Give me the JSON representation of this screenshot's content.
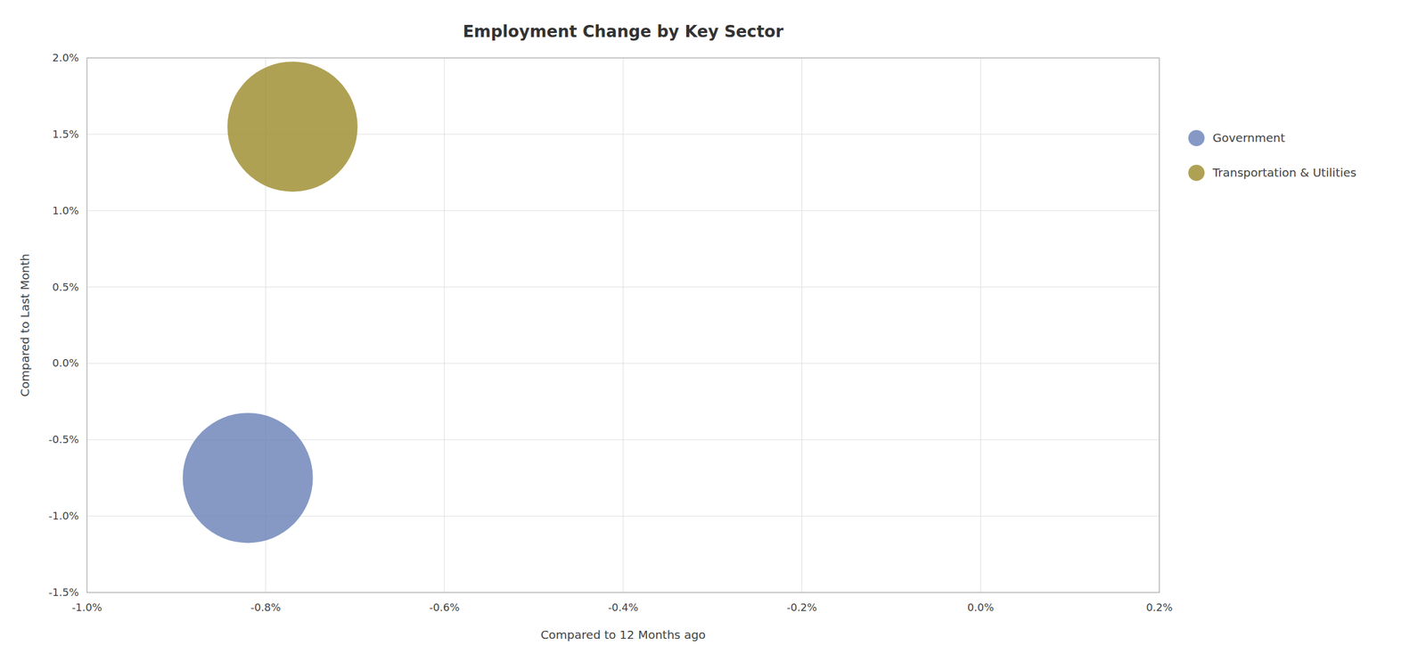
{
  "chart_data": {
    "type": "scatter",
    "title": "Employment Change by Key Sector",
    "xlabel": "Compared to 12 Months ago",
    "ylabel": "Compared to Last Month",
    "xlim": [
      -0.01,
      0.002
    ],
    "ylim": [
      -0.015,
      0.02
    ],
    "xticks": [
      {
        "value": -0.01,
        "label": "-1.0%"
      },
      {
        "value": -0.008,
        "label": "-0.8%"
      },
      {
        "value": -0.006,
        "label": "-0.6%"
      },
      {
        "value": -0.004,
        "label": "-0.4%"
      },
      {
        "value": -0.002,
        "label": "-0.2%"
      },
      {
        "value": 0.0,
        "label": "0.0%"
      },
      {
        "value": 0.002,
        "label": "0.2%"
      }
    ],
    "yticks": [
      {
        "value": -0.015,
        "label": "-1.5%"
      },
      {
        "value": -0.01,
        "label": "-1.0%"
      },
      {
        "value": -0.005,
        "label": "-0.5%"
      },
      {
        "value": 0.0,
        "label": "0.0%"
      },
      {
        "value": 0.005,
        "label": "0.5%"
      },
      {
        "value": 0.01,
        "label": "1.0%"
      },
      {
        "value": 0.015,
        "label": "1.5%"
      },
      {
        "value": 0.02,
        "label": "2.0%"
      }
    ],
    "grid": true,
    "legend": "right",
    "series": [
      {
        "name": "Government",
        "color": "#6b83b8",
        "x": [
          -0.0082
        ],
        "values": [
          -0.0075
        ],
        "size": [
          35000
        ]
      },
      {
        "name": "Transportation & Utilities",
        "color": "#9e8c2e",
        "x": [
          -0.0077
        ],
        "values": [
          0.0155
        ],
        "size": [
          35000
        ]
      }
    ]
  }
}
